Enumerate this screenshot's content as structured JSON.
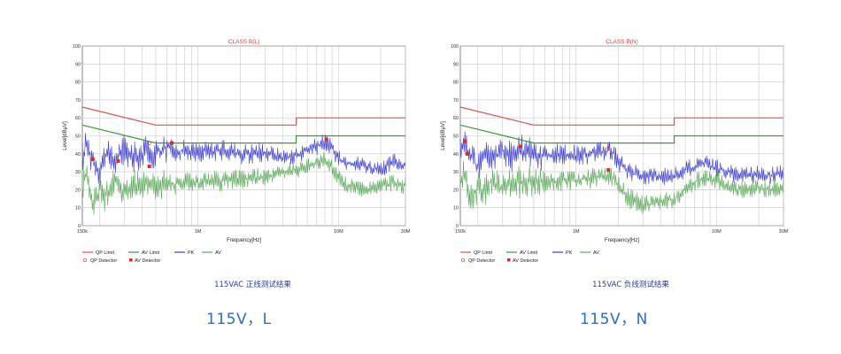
{
  "chart_data": [
    {
      "type": "line",
      "title": "CLASS B(L)",
      "xlabel": "Frequency[Hz]",
      "ylabel": "Level[dBμV]",
      "x_scale": "log",
      "xlim": [
        0.15,
        30
      ],
      "ylim": [
        0,
        100
      ],
      "x_ticks": [
        {
          "value": 0.15,
          "label": "150k"
        },
        {
          "value": 1,
          "label": "1M"
        },
        {
          "value": 10,
          "label": "10M"
        },
        {
          "value": 30,
          "label": "30M"
        }
      ],
      "y_ticks": [
        0,
        10,
        20,
        30,
        40,
        50,
        60,
        70,
        80,
        90,
        100
      ],
      "grid": true,
      "legend": [
        "QP Limit",
        "AV Limit",
        "PK",
        "AV",
        "QP Detector",
        "AV Detector"
      ],
      "limit_series": [
        {
          "name": "QP Limit",
          "color": "#e05050",
          "x": [
            0.15,
            0.5,
            0.5,
            5,
            5,
            30
          ],
          "y": [
            66,
            56,
            56,
            56,
            60,
            60
          ]
        },
        {
          "name": "AV Limit",
          "color": "#3a9a3a",
          "x": [
            0.15,
            0.5,
            0.5,
            5,
            5,
            30
          ],
          "y": [
            56,
            46,
            46,
            46,
            50,
            50
          ]
        }
      ],
      "series": [
        {
          "name": "PK",
          "color": "#3b3bd0",
          "x": [
            0.15,
            0.16,
            0.18,
            0.2,
            0.22,
            0.25,
            0.3,
            0.35,
            0.4,
            0.45,
            0.5,
            0.6,
            0.7,
            0.8,
            1,
            1.5,
            2,
            3,
            4,
            5,
            6,
            7,
            8,
            9,
            10,
            12,
            15,
            20,
            25,
            30
          ],
          "y": [
            38,
            45,
            36,
            30,
            40,
            35,
            43,
            38,
            40,
            42,
            40,
            44,
            41,
            42,
            41,
            42,
            40,
            41,
            38,
            39,
            42,
            44,
            47,
            43,
            37,
            35,
            34,
            30,
            36,
            33
          ]
        },
        {
          "name": "AV",
          "color": "#5aa85a",
          "x": [
            0.15,
            0.16,
            0.18,
            0.2,
            0.22,
            0.25,
            0.3,
            0.35,
            0.4,
            0.45,
            0.5,
            0.6,
            0.7,
            0.8,
            1,
            1.5,
            2,
            3,
            4,
            5,
            6,
            7,
            8,
            9,
            10,
            12,
            15,
            20,
            25,
            30
          ],
          "y": [
            22,
            28,
            12,
            20,
            16,
            26,
            18,
            24,
            20,
            26,
            22,
            24,
            23,
            25,
            24,
            25,
            26,
            27,
            29,
            31,
            33,
            35,
            37,
            33,
            26,
            22,
            20,
            22,
            24,
            22
          ]
        }
      ],
      "qp_detector": {
        "x": [
          0.178,
          0.27,
          0.45,
          0.65,
          8.2
        ],
        "y": [
          37,
          36,
          46,
          46,
          48
        ]
      },
      "av_detector": {
        "x": [
          0.178,
          0.27,
          0.45,
          0.65,
          8.2
        ],
        "y": [
          37,
          36,
          33,
          46,
          48
        ]
      }
    },
    {
      "type": "line",
      "title": "CLASS B(N)",
      "xlabel": "Frequency[Hz]",
      "ylabel": "Level[dBμV]",
      "x_scale": "log",
      "xlim": [
        0.15,
        30
      ],
      "ylim": [
        0,
        100
      ],
      "x_ticks": [
        {
          "value": 0.15,
          "label": "150k"
        },
        {
          "value": 1,
          "label": "1M"
        },
        {
          "value": 10,
          "label": "10M"
        },
        {
          "value": 30,
          "label": "30M"
        }
      ],
      "y_ticks": [
        0,
        10,
        20,
        30,
        40,
        50,
        60,
        70,
        80,
        90,
        100
      ],
      "grid": true,
      "legend": [
        "QP Limit",
        "AV Limit",
        "PK",
        "AV",
        "QP Detector",
        "AV Detector"
      ],
      "limit_series": [
        {
          "name": "QP Limit",
          "color": "#e05050",
          "x": [
            0.15,
            0.5,
            0.5,
            5,
            5,
            30
          ],
          "y": [
            66,
            56,
            56,
            56,
            60,
            60
          ]
        },
        {
          "name": "AV Limit",
          "color": "#3a9a3a",
          "x": [
            0.15,
            0.5,
            0.5,
            5,
            5,
            30
          ],
          "y": [
            56,
            46,
            46,
            46,
            50,
            50
          ]
        }
      ],
      "series": [
        {
          "name": "PK",
          "color": "#3b3bd0",
          "x": [
            0.15,
            0.16,
            0.18,
            0.2,
            0.22,
            0.25,
            0.3,
            0.35,
            0.4,
            0.5,
            0.6,
            0.8,
            1,
            1.2,
            1.5,
            1.8,
            2,
            2.5,
            3,
            4,
            5,
            6,
            7,
            8,
            10,
            12,
            15,
            20,
            25,
            30
          ],
          "y": [
            40,
            46,
            38,
            32,
            40,
            36,
            42,
            38,
            42,
            40,
            39,
            40,
            39,
            40,
            41,
            42,
            35,
            29,
            28,
            27,
            28,
            31,
            33,
            35,
            32,
            30,
            28,
            29,
            28,
            30
          ]
        },
        {
          "name": "AV",
          "color": "#5aa85a",
          "x": [
            0.15,
            0.16,
            0.18,
            0.2,
            0.22,
            0.25,
            0.3,
            0.35,
            0.4,
            0.5,
            0.6,
            0.8,
            1,
            1.2,
            1.5,
            1.8,
            2,
            2.5,
            3,
            4,
            5,
            6,
            7,
            8,
            10,
            12,
            15,
            20,
            25,
            30
          ],
          "y": [
            25,
            30,
            14,
            22,
            18,
            26,
            20,
            25,
            24,
            25,
            24,
            25,
            25,
            26,
            27,
            28,
            22,
            14,
            12,
            13,
            15,
            20,
            24,
            27,
            25,
            22,
            20,
            21,
            20,
            22
          ]
        }
      ],
      "qp_detector": {
        "x": [
          0.162,
          0.168,
          0.4,
          1.7
        ],
        "y": [
          47,
          40,
          44,
          43
        ]
      },
      "av_detector": {
        "x": [
          0.162,
          0.168,
          0.4,
          1.7
        ],
        "y": [
          47,
          40,
          44,
          31
        ]
      }
    }
  ],
  "captions": {
    "left_chart_caption": "115VAC 正线测试结果",
    "right_chart_caption": "115VAC 负线测试结果",
    "left_bottom": "115V，L",
    "right_bottom": "115V，N"
  }
}
